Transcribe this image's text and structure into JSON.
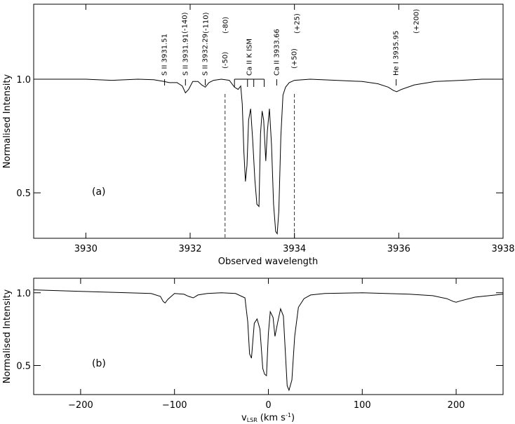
{
  "chart_data": [
    {
      "panel": "(a)",
      "type": "line",
      "xlabel": "Observed wavelength",
      "ylabel": "Normalised Intensity",
      "xlim": [
        3929,
        3938
      ],
      "ylim": [
        0.3,
        1.33
      ],
      "xticks": [
        3930,
        3932,
        3934,
        3936,
        3938
      ],
      "yticks": [
        0.5,
        1.0
      ],
      "ytick_labels": [
        "0.5",
        "1.0"
      ],
      "x": [
        3929.0,
        3929.5,
        3930.0,
        3930.5,
        3931.0,
        3931.3,
        3931.5,
        3931.6,
        3931.75,
        3931.85,
        3931.91,
        3931.97,
        3932.05,
        3932.15,
        3932.22,
        3932.29,
        3932.36,
        3932.45,
        3932.6,
        3932.75,
        3932.85,
        3932.92,
        3932.97,
        3933.0,
        3933.03,
        3933.06,
        3933.09,
        3933.12,
        3933.16,
        3933.2,
        3933.24,
        3933.28,
        3933.32,
        3933.35,
        3933.38,
        3933.41,
        3933.45,
        3933.48,
        3933.52,
        3933.56,
        3933.6,
        3933.64,
        3933.67,
        3933.7,
        3933.74,
        3933.78,
        3933.83,
        3933.9,
        3934.0,
        3934.3,
        3934.8,
        3935.3,
        3935.6,
        3935.8,
        3935.9,
        3935.96,
        3936.05,
        3936.3,
        3936.7,
        3937.2,
        3937.6,
        3938.0
      ],
      "y": [
        1.0,
        1.0,
        1.0,
        0.995,
        1.0,
        0.998,
        0.99,
        0.985,
        0.985,
        0.97,
        0.94,
        0.955,
        0.99,
        0.99,
        0.975,
        0.965,
        0.985,
        0.995,
        1.0,
        0.995,
        0.965,
        0.955,
        0.97,
        0.89,
        0.68,
        0.55,
        0.62,
        0.82,
        0.87,
        0.73,
        0.56,
        0.45,
        0.44,
        0.76,
        0.86,
        0.82,
        0.64,
        0.77,
        0.87,
        0.71,
        0.45,
        0.33,
        0.32,
        0.42,
        0.75,
        0.93,
        0.965,
        0.985,
        0.995,
        1.0,
        0.995,
        0.99,
        0.98,
        0.965,
        0.95,
        0.945,
        0.955,
        0.975,
        0.99,
        0.995,
        1.0,
        1.0
      ],
      "annotations": [
        {
          "label": "S II 3931.51",
          "velocity": "(-140)",
          "wavelength": 3931.51
        },
        {
          "label": "S II 3931.91",
          "velocity": "(-110)",
          "wavelength": 3931.91
        },
        {
          "label": "S II 3932.29",
          "velocity": "(-80)",
          "wavelength": 3932.29
        },
        {
          "label": "",
          "velocity": "(-50)",
          "wavelength": 3932.67
        },
        {
          "label": "Ca II K ISM",
          "velocity": "",
          "wavelength": 3933.1
        },
        {
          "label": "Ca II 3933.66",
          "velocity": "(+25)",
          "wavelength": 3933.66
        },
        {
          "label": "",
          "velocity": "(+50)",
          "wavelength": 3934.0
        },
        {
          "label": "He I 3935.95",
          "velocity": "(+200)",
          "wavelength": 3935.95
        }
      ],
      "ism_bracket_wavelengths": [
        3932.85,
        3933.1,
        3933.22,
        3933.42
      ],
      "dashed_lines": [
        3932.67,
        3934.0
      ]
    },
    {
      "panel": "(b)",
      "type": "line",
      "xlabel": "v",
      "xlabel_sub": "LSR",
      "xlabel_unit": "(km s",
      "xlabel_unit_sup": "-1",
      "xlabel_unit_close": ")",
      "ylabel": "Normalised Intensity",
      "xlim": [
        -250,
        250
      ],
      "ylim": [
        0.3,
        1.1
      ],
      "xticks": [
        -200,
        -100,
        0,
        100,
        200
      ],
      "xtick_labels": [
        "−200",
        "−100",
        "0",
        "100",
        "200"
      ],
      "yticks": [
        0.5,
        1.0
      ],
      "ytick_labels": [
        "0.5",
        "1.0"
      ],
      "x": [
        -250,
        -200,
        -150,
        -125,
        -115,
        -112,
        -110,
        -107,
        -100,
        -90,
        -85,
        -80,
        -75,
        -65,
        -50,
        -35,
        -25,
        -22,
        -20,
        -18,
        -15,
        -12,
        -9,
        -6,
        -4,
        -2,
        0,
        2,
        5,
        7,
        10,
        13,
        16,
        18,
        20,
        22,
        25,
        28,
        32,
        38,
        45,
        60,
        100,
        150,
        175,
        190,
        197,
        200,
        205,
        220,
        250
      ],
      "y": [
        1.02,
        1.01,
        1.0,
        0.995,
        0.975,
        0.94,
        0.93,
        0.955,
        0.995,
        0.99,
        0.975,
        0.965,
        0.985,
        0.995,
        1.0,
        0.995,
        0.965,
        0.8,
        0.58,
        0.55,
        0.79,
        0.82,
        0.75,
        0.48,
        0.44,
        0.43,
        0.72,
        0.87,
        0.83,
        0.7,
        0.8,
        0.89,
        0.84,
        0.6,
        0.36,
        0.33,
        0.4,
        0.7,
        0.9,
        0.96,
        0.985,
        0.995,
        1.0,
        0.99,
        0.98,
        0.96,
        0.94,
        0.935,
        0.945,
        0.97,
        0.99
      ]
    }
  ]
}
